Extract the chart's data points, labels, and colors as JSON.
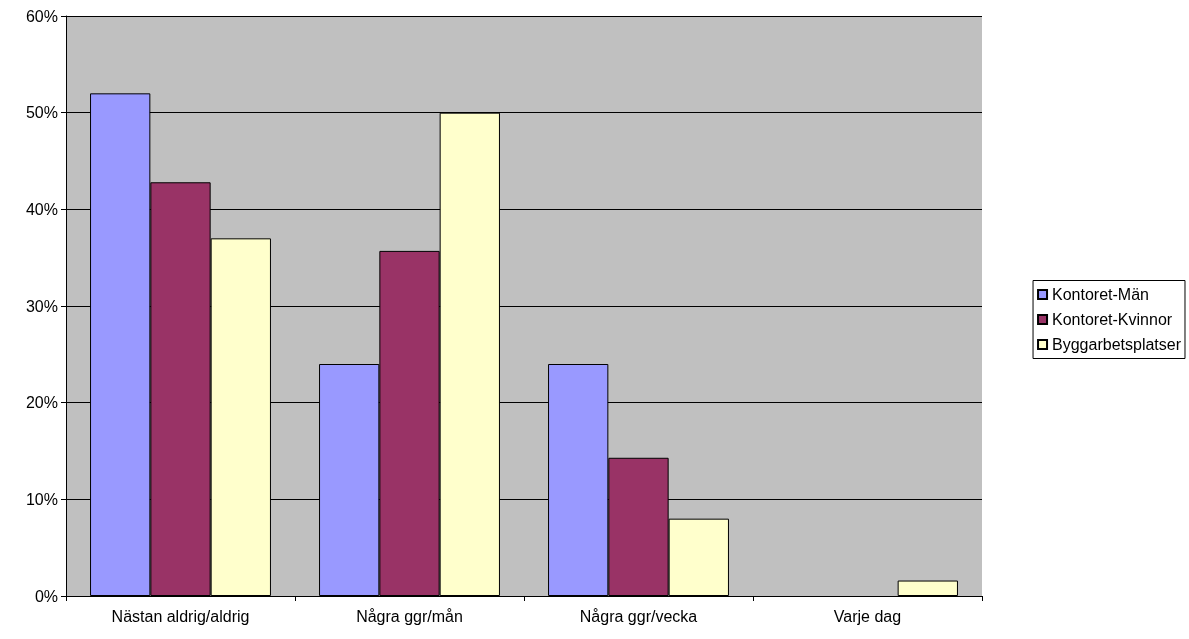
{
  "chart_data": {
    "type": "bar",
    "categories": [
      "Nästan aldrig/aldrig",
      "Några ggr/mån",
      "Några ggr/vecka",
      "Varje dag"
    ],
    "series": [
      {
        "name": "Kontoret-Män",
        "color": "#9999ff",
        "values": [
          52,
          24,
          24,
          0
        ]
      },
      {
        "name": "Kontoret-Kvinnor",
        "color": "#993366",
        "values": [
          42.8,
          35.7,
          14.3,
          0
        ]
      },
      {
        "name": "Byggarbetsplatser",
        "color": "#ffffcc",
        "values": [
          37,
          50,
          8,
          1.6
        ]
      }
    ],
    "ylim": [
      0,
      60
    ],
    "yticks": [
      {
        "value": 0,
        "label": "0%"
      },
      {
        "value": 10,
        "label": "10%"
      },
      {
        "value": 20,
        "label": "20%"
      },
      {
        "value": 30,
        "label": "30%"
      },
      {
        "value": 40,
        "label": "40%"
      },
      {
        "value": 50,
        "label": "50%"
      },
      {
        "value": 60,
        "label": "60%"
      }
    ],
    "grid": "y",
    "legend": "right"
  }
}
